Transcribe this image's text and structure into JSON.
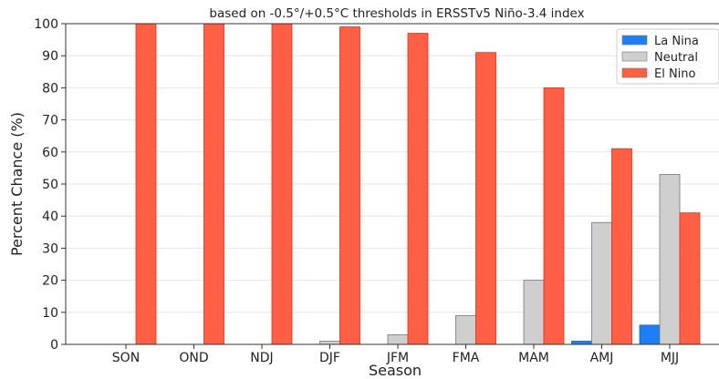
{
  "chart_data": {
    "type": "bar",
    "title": "based on -0.5°/+0.5°C thresholds in ERSSTv5 Niño-3.4 index",
    "xlabel": "Season",
    "ylabel": "Percent Chance (%)",
    "ylim": [
      0,
      100
    ],
    "yticks": [
      0,
      10,
      20,
      30,
      40,
      50,
      60,
      70,
      80,
      90,
      100
    ],
    "grid": true,
    "legend_position": "top-right",
    "categories": [
      "SON",
      "OND",
      "NDJ",
      "DJF",
      "JFM",
      "FMA",
      "MAM",
      "AMJ",
      "MJJ"
    ],
    "series": [
      {
        "name": "La Nina",
        "color": "#1e7ff5",
        "values": [
          0,
          0,
          0,
          0,
          0,
          0,
          0,
          1,
          6
        ]
      },
      {
        "name": "Neutral",
        "color": "#cfcfcf",
        "values": [
          0,
          0,
          0,
          1,
          3,
          9,
          20,
          38,
          53
        ]
      },
      {
        "name": "El Nino",
        "color": "#ff5f45",
        "values": [
          100,
          100,
          100,
          99,
          97,
          91,
          80,
          61,
          41
        ]
      }
    ]
  }
}
